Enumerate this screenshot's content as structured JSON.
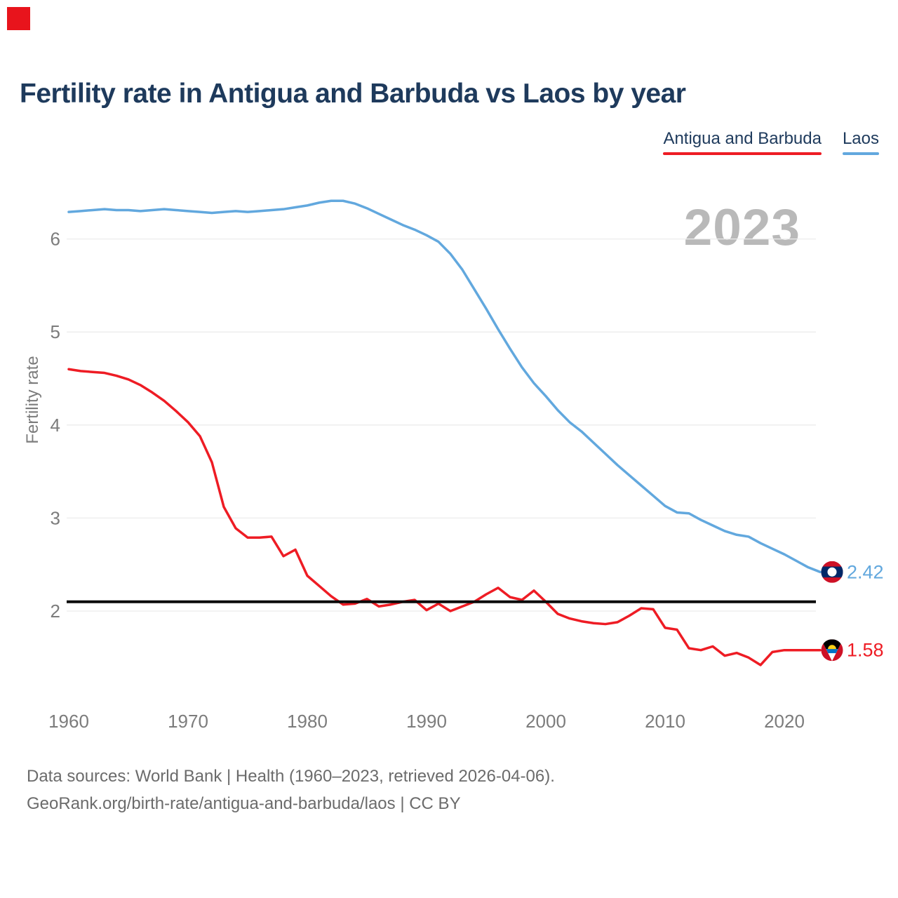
{
  "page": {
    "background": "#ffffff"
  },
  "corner_marker_color": "#e8141c",
  "header": {
    "title": "Fertility rate in Antigua and Barbuda vs Laos by year"
  },
  "legend": {
    "items": [
      {
        "label": "Antigua and Barbuda",
        "color": "#ee1c24"
      },
      {
        "label": "Laos",
        "color": "#62a8de"
      }
    ]
  },
  "watermark": "2023",
  "footer": {
    "line1": "Data sources: World Bank | Health (1960–2023, retrieved 2026-04-06).",
    "line2": "GeoRank.org/birth-rate/antigua-and-barbuda/laos | CC BY"
  },
  "chart_data": {
    "type": "line",
    "title": "Fertility rate in Antigua and Barbuda vs Laos by year",
    "xlabel": "",
    "ylabel": "Fertility rate",
    "x_ticks": [
      1960,
      1970,
      1980,
      1990,
      2000,
      2010,
      2020
    ],
    "y_ticks": [
      2,
      3,
      4,
      5,
      6
    ],
    "xlim": [
      1960,
      2023
    ],
    "ylim": [
      1.3,
      6.6
    ],
    "grid": "horizontal",
    "legend_position": "top-right",
    "watermark_year": "2023",
    "reference_line": {
      "value": 2.1,
      "color": "#0a0a0a"
    },
    "axis_color": "#7c7c7c",
    "grid_color": "#ececec",
    "years": [
      1960,
      1961,
      1962,
      1963,
      1964,
      1965,
      1966,
      1967,
      1968,
      1969,
      1970,
      1971,
      1972,
      1973,
      1974,
      1975,
      1976,
      1977,
      1978,
      1979,
      1980,
      1981,
      1982,
      1983,
      1984,
      1985,
      1986,
      1987,
      1988,
      1989,
      1990,
      1991,
      1992,
      1993,
      1994,
      1995,
      1996,
      1997,
      1998,
      1999,
      2000,
      2001,
      2002,
      2003,
      2004,
      2005,
      2006,
      2007,
      2008,
      2009,
      2010,
      2011,
      2012,
      2013,
      2014,
      2015,
      2016,
      2017,
      2018,
      2019,
      2020,
      2021,
      2022,
      2023
    ],
    "series": [
      {
        "name": "Antigua and Barbuda",
        "color": "#ee1c24",
        "end_label": "1.58",
        "flag": "antigua-and-barbuda",
        "values": [
          4.6,
          4.58,
          4.57,
          4.56,
          4.53,
          4.49,
          4.43,
          4.35,
          4.26,
          4.15,
          4.03,
          3.88,
          3.6,
          3.12,
          2.89,
          2.79,
          2.79,
          2.8,
          2.59,
          2.66,
          2.38,
          2.27,
          2.16,
          2.07,
          2.08,
          2.13,
          2.05,
          2.07,
          2.1,
          2.12,
          2.01,
          2.08,
          2.0,
          2.05,
          2.1,
          2.18,
          2.25,
          2.15,
          2.12,
          2.22,
          2.1,
          1.97,
          1.92,
          1.89,
          1.87,
          1.86,
          1.88,
          1.95,
          2.03,
          2.02,
          1.82,
          1.8,
          1.6,
          1.58,
          1.62,
          1.52,
          1.55,
          1.5,
          1.42,
          1.56,
          1.58,
          1.58,
          1.58,
          1.58
        ]
      },
      {
        "name": "Laos",
        "color": "#62a8de",
        "end_label": "2.42",
        "flag": "laos",
        "values": [
          6.29,
          6.3,
          6.31,
          6.32,
          6.31,
          6.31,
          6.3,
          6.31,
          6.32,
          6.31,
          6.3,
          6.29,
          6.28,
          6.29,
          6.3,
          6.29,
          6.3,
          6.31,
          6.32,
          6.34,
          6.36,
          6.39,
          6.41,
          6.41,
          6.38,
          6.33,
          6.27,
          6.21,
          6.15,
          6.1,
          6.04,
          5.97,
          5.84,
          5.67,
          5.46,
          5.25,
          5.03,
          4.82,
          4.62,
          4.45,
          4.31,
          4.16,
          4.03,
          3.93,
          3.81,
          3.69,
          3.57,
          3.46,
          3.35,
          3.24,
          3.13,
          3.06,
          3.05,
          2.98,
          2.92,
          2.86,
          2.82,
          2.8,
          2.73,
          2.67,
          2.61,
          2.54,
          2.47,
          2.42
        ]
      }
    ]
  }
}
